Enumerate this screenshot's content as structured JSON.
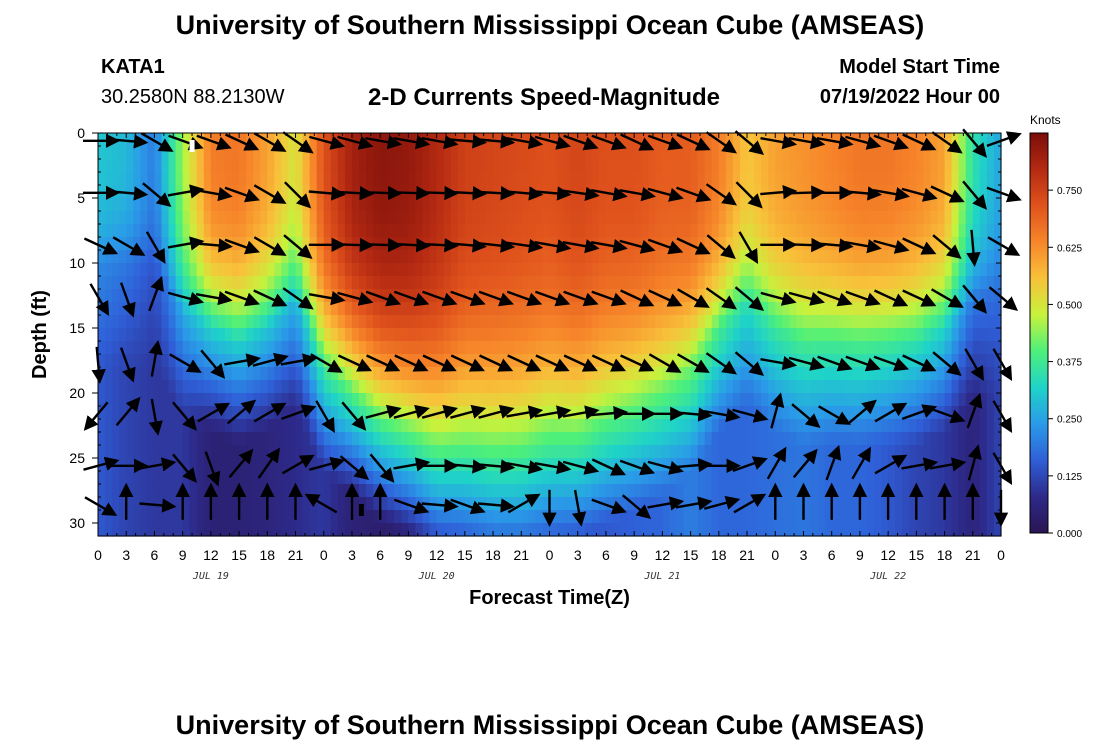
{
  "header": {
    "title": "University of Southern Mississippi Ocean Cube (AMSEAS)",
    "station_id": "KATA1",
    "station_coords": "30.2580N  88.2130W",
    "plot_title": "2-D Currents Speed-Magnitude",
    "model_start_label": "Model Start Time",
    "model_start_value": "07/19/2022 Hour 00"
  },
  "footer": {
    "title": "University of Southern Mississippi Ocean Cube (AMSEAS)"
  },
  "chart_data": {
    "type": "heatmap",
    "title": "2-D Currents Speed-Magnitude",
    "xlabel": "Forecast Time(Z)",
    "ylabel": "Depth (ft)",
    "xlim": [
      0,
      96
    ],
    "ylim": [
      31,
      0
    ],
    "x_ticks": [
      0,
      3,
      6,
      9,
      12,
      15,
      18,
      21,
      24,
      27,
      30,
      33,
      36,
      39,
      42,
      45,
      48,
      51,
      54,
      57,
      60,
      63,
      66,
      69,
      72,
      75,
      78,
      81,
      84,
      87,
      90,
      93,
      96
    ],
    "x_tick_labels": [
      "0",
      "3",
      "6",
      "9",
      "12",
      "15",
      "18",
      "21",
      "0",
      "3",
      "6",
      "9",
      "12",
      "15",
      "18",
      "21",
      "0",
      "3",
      "6",
      "9",
      "12",
      "15",
      "18",
      "21",
      "0",
      "3",
      "6",
      "9",
      "12",
      "15",
      "18",
      "21",
      "0"
    ],
    "y_ticks": [
      0,
      5,
      10,
      15,
      20,
      25,
      30
    ],
    "y_tick_labels": [
      "0",
      "5",
      "10",
      "15",
      "20",
      "25",
      "30"
    ],
    "date_labels": [
      {
        "hour": 12,
        "label": "JUL 19"
      },
      {
        "hour": 36,
        "label": "JUL 20"
      },
      {
        "hour": 60,
        "label": "JUL 21"
      },
      {
        "hour": 84,
        "label": "JUL 22"
      }
    ],
    "colorbar": {
      "unit": "Knots",
      "min": 0.0,
      "max": 0.875,
      "ticks": [
        0.0,
        0.125,
        0.25,
        0.375,
        0.5,
        0.625,
        0.75
      ],
      "tick_labels": [
        "0.000",
        "0.125",
        "0.250",
        "0.375",
        "0.500",
        "0.625",
        "0.750"
      ],
      "colors": [
        "#2b1452",
        "#2d2a8a",
        "#2f5fd8",
        "#2a9be8",
        "#1fd3c8",
        "#4ef07a",
        "#c7f23c",
        "#f8c23a",
        "#f7862a",
        "#e0521c",
        "#b52a12",
        "#7a0d0a"
      ]
    },
    "speed_model": {
      "description": "approximate current speed (knots) versus time (hours) and depth (ft)",
      "times": [
        0,
        3,
        6,
        9,
        12,
        15,
        18,
        21,
        24,
        27,
        30,
        33,
        36,
        39,
        42,
        45,
        48,
        51,
        54,
        57,
        60,
        63,
        66,
        69,
        72,
        75,
        78,
        81,
        84,
        87,
        90,
        93,
        96
      ],
      "surface_speed": [
        0.3,
        0.28,
        0.2,
        0.45,
        0.65,
        0.66,
        0.6,
        0.5,
        0.72,
        0.82,
        0.85,
        0.84,
        0.8,
        0.75,
        0.74,
        0.73,
        0.72,
        0.74,
        0.72,
        0.72,
        0.7,
        0.7,
        0.65,
        0.55,
        0.6,
        0.62,
        0.64,
        0.66,
        0.66,
        0.64,
        0.6,
        0.35,
        0.25
      ],
      "core_depth": [
        0,
        0,
        0,
        4,
        5,
        6,
        5,
        3,
        8,
        10,
        12,
        13,
        14,
        14,
        14,
        14,
        13,
        13,
        12,
        11,
        10,
        8,
        5,
        3,
        5,
        6,
        6,
        6,
        6,
        6,
        5,
        3,
        2
      ],
      "deep_speed": [
        0.15,
        0.12,
        0.1,
        0.1,
        0.05,
        0.05,
        0.06,
        0.08,
        0.1,
        0.05,
        0.04,
        0.05,
        0.1,
        0.12,
        0.15,
        0.15,
        0.16,
        0.15,
        0.15,
        0.16,
        0.17,
        0.2,
        0.17,
        0.17,
        0.18,
        0.19,
        0.17,
        0.17,
        0.15,
        0.12,
        0.1,
        0.06,
        0.12
      ]
    },
    "vectors": {
      "description": "current direction arrows, degrees toward (0 = up/north, 90 = right/east)",
      "depths": [
        0,
        4,
        8,
        12,
        17,
        21,
        25,
        28
      ],
      "times_by_depth": {
        "0": [
          0,
          3,
          6,
          9,
          12,
          15,
          18,
          21,
          24,
          27,
          30,
          33,
          36,
          39,
          42,
          45,
          48,
          51,
          54,
          57,
          60,
          63,
          66,
          69,
          72,
          75,
          78,
          81,
          84,
          87,
          90,
          93,
          96
        ]
      },
      "direction_rows": [
        [
          90,
          95,
          120,
          110,
          110,
          115,
          120,
          125,
          105,
          105,
          100,
          100,
          100,
          95,
          95,
          100,
          105,
          110,
          110,
          115,
          110,
          115,
          125,
          130,
          100,
          100,
          100,
          105,
          110,
          115,
          125,
          140,
          70
        ],
        [
          90,
          95,
          130,
          80,
          100,
          110,
          120,
          135,
          95,
          93,
          92,
          92,
          92,
          93,
          93,
          95,
          95,
          98,
          100,
          100,
          105,
          110,
          125,
          135,
          85,
          88,
          90,
          95,
          100,
          105,
          115,
          140,
          110
        ],
        [
          115,
          120,
          150,
          80,
          95,
          110,
          120,
          130,
          90,
          92,
          92,
          93,
          93,
          95,
          96,
          98,
          100,
          100,
          100,
          105,
          110,
          115,
          130,
          150,
          90,
          92,
          95,
          100,
          105,
          115,
          130,
          175,
          120
        ],
        [
          150,
          160,
          20,
          105,
          100,
          110,
          115,
          125,
          100,
          105,
          110,
          110,
          110,
          110,
          110,
          110,
          110,
          110,
          110,
          115,
          115,
          120,
          125,
          130,
          105,
          105,
          110,
          110,
          115,
          115,
          120,
          140,
          130
        ],
        [
          175,
          160,
          10,
          120,
          140,
          80,
          75,
          80,
          120,
          115,
          115,
          115,
          115,
          115,
          115,
          115,
          115,
          115,
          115,
          115,
          120,
          120,
          125,
          130,
          100,
          105,
          110,
          110,
          110,
          115,
          130,
          150,
          150
        ],
        [
          220,
          40,
          170,
          140,
          60,
          50,
          60,
          70,
          150,
          140,
          75,
          75,
          75,
          75,
          75,
          80,
          80,
          80,
          85,
          90,
          90,
          95,
          100,
          105,
          15,
          130,
          120,
          50,
          60,
          70,
          110,
          20,
          150
        ],
        [
          75,
          90,
          80,
          140,
          160,
          40,
          35,
          60,
          75,
          130,
          140,
          80,
          90,
          95,
          95,
          100,
          100,
          105,
          115,
          110,
          105,
          85,
          90,
          70,
          30,
          40,
          20,
          30,
          60,
          80,
          80,
          15,
          150
        ],
        [
          120,
          0,
          95,
          0,
          0,
          0,
          0,
          0,
          300,
          0,
          0,
          110,
          95,
          110,
          95,
          60,
          180,
          170,
          110,
          130,
          80,
          80,
          75,
          60,
          0,
          0,
          0,
          0,
          0,
          0,
          0,
          0,
          180
        ]
      ]
    },
    "markers": [
      {
        "hour": 10,
        "depth": 1,
        "color": "white"
      },
      {
        "hour": 28,
        "depth": 29,
        "color": "black"
      }
    ]
  }
}
